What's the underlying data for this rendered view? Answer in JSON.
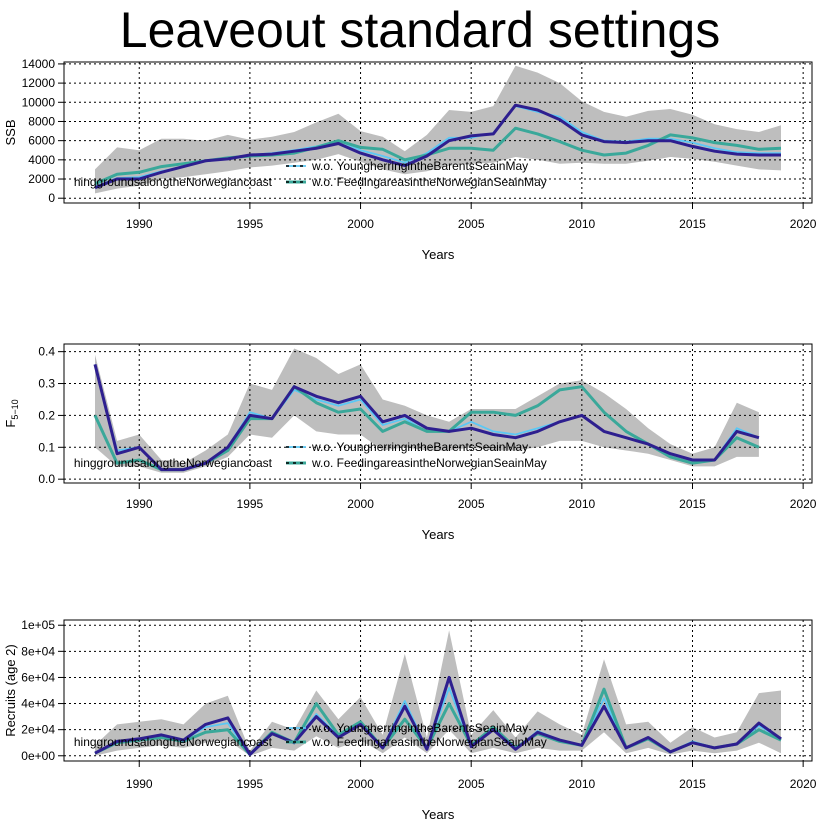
{
  "title": "Leaveout standard settings",
  "colors": {
    "band": "#bebebe",
    "baseline": "#2e1f8f",
    "young_herring": "#5bc8f5",
    "feeding_areas": "#3aa89a",
    "grid": "#000000"
  },
  "chart_data": [
    {
      "type": "line",
      "ylabel": "SSB",
      "xlabel": "Years",
      "xlim": [
        1986.6,
        2020.4
      ],
      "ylim": [
        -500,
        14200
      ],
      "xticks": [
        1990,
        1995,
        2000,
        2005,
        2010,
        2015,
        2020
      ],
      "yticks": [
        0,
        2000,
        4000,
        6000,
        8000,
        10000,
        12000,
        14000
      ],
      "ytick_labels": [
        "0",
        "2000",
        "4000",
        "6000",
        "8000",
        "10000",
        "12000",
        "14000"
      ],
      "grid": true,
      "legend_entries": [
        "w.o. YoungherringintheBarentsSeainMay",
        "w.o. FeedingareasintheNorwegianSeainMay"
      ],
      "legend_cut_label": "hinggroundsalongtheNorwegiancoast",
      "x": [
        1988,
        1989,
        1990,
        1991,
        1992,
        1993,
        1994,
        1995,
        1996,
        1997,
        1998,
        1999,
        2000,
        2001,
        2002,
        2003,
        2004,
        2005,
        2006,
        2007,
        2008,
        2009,
        2010,
        2011,
        2012,
        2013,
        2014,
        2015,
        2016,
        2017,
        2018,
        2019
      ],
      "band_upper": [
        3000,
        5300,
        5000,
        6200,
        6200,
        6000,
        6600,
        6100,
        6400,
        6900,
        7900,
        8800,
        7000,
        6400,
        4900,
        6600,
        9200,
        9000,
        9600,
        13800,
        13100,
        12000,
        10100,
        9000,
        8500,
        9100,
        9300,
        8700,
        7700,
        7200,
        6900,
        7600
      ],
      "band_lower": [
        500,
        1000,
        1300,
        2000,
        2200,
        2500,
        2800,
        3200,
        3400,
        3700,
        4000,
        4600,
        3800,
        3000,
        2500,
        2800,
        3400,
        3600,
        3700,
        4300,
        4000,
        3600,
        3700,
        3600,
        3600,
        3900,
        4300,
        4100,
        3800,
        3400,
        3000,
        2900
      ],
      "series": [
        {
          "key": "baseline",
          "values": [
            1100,
            2000,
            2000,
            2700,
            3300,
            3900,
            4100,
            4500,
            4600,
            4900,
            5200,
            5700,
            4700,
            4000,
            3400,
            4400,
            6000,
            6500,
            6700,
            9700,
            9200,
            8200,
            6600,
            5900,
            5800,
            6000,
            6000,
            5400,
            4900,
            4600,
            4500,
            4500
          ]
        },
        {
          "key": "young_herring",
          "values": [
            1200,
            2100,
            2200,
            2800,
            3300,
            3900,
            4200,
            4500,
            4700,
            5000,
            5400,
            6000,
            5000,
            4400,
            3700,
            4700,
            6300,
            6300,
            6800,
            9600,
            9000,
            8500,
            6900,
            6000,
            5900,
            6200,
            6200,
            5800,
            5200,
            4800,
            4700,
            4700
          ]
        },
        {
          "key": "feeding_areas",
          "values": [
            1500,
            2500,
            2700,
            3300,
            3600,
            3900,
            4200,
            4400,
            4500,
            4700,
            5300,
            6000,
            5300,
            5100,
            4000,
            4500,
            5200,
            5200,
            5000,
            7300,
            6700,
            5900,
            5000,
            4500,
            4700,
            5500,
            6600,
            6300,
            5800,
            5500,
            5100,
            5200
          ]
        }
      ]
    },
    {
      "type": "line",
      "ylabel": "F",
      "ylabel_sub": "5−10",
      "xlabel": "Years",
      "xlim": [
        1986.6,
        2020.4
      ],
      "ylim": [
        -0.012,
        0.424
      ],
      "xticks": [
        1990,
        1995,
        2000,
        2005,
        2010,
        2015,
        2020
      ],
      "yticks": [
        0,
        0.1,
        0.2,
        0.3,
        0.4
      ],
      "ytick_labels": [
        "0.0",
        "0.1",
        "0.2",
        "0.3",
        "0.4"
      ],
      "grid": true,
      "legend_entries": [
        "w.o. YoungherringintheBarentsSeainMay",
        "w.o. FeedingareasintheNorwegianSeainMay"
      ],
      "legend_cut_label": "hinggroundsalongtheNorwegiancoast",
      "x": [
        1988,
        1989,
        1990,
        1991,
        1992,
        1993,
        1994,
        1995,
        1996,
        1997,
        1998,
        1999,
        2000,
        2001,
        2002,
        2003,
        2004,
        2005,
        2006,
        2007,
        2008,
        2009,
        2010,
        2011,
        2012,
        2013,
        2014,
        2015,
        2016,
        2017,
        2018
      ],
      "band_upper": [
        0.39,
        0.12,
        0.14,
        0.06,
        0.05,
        0.09,
        0.14,
        0.3,
        0.28,
        0.41,
        0.38,
        0.33,
        0.36,
        0.25,
        0.23,
        0.2,
        0.18,
        0.22,
        0.22,
        0.22,
        0.26,
        0.3,
        0.31,
        0.27,
        0.22,
        0.16,
        0.11,
        0.08,
        0.1,
        0.24,
        0.21
      ],
      "band_lower": [
        0.1,
        0.04,
        0.04,
        0.02,
        0.02,
        0.04,
        0.07,
        0.14,
        0.13,
        0.2,
        0.15,
        0.14,
        0.14,
        0.09,
        0.1,
        0.09,
        0.09,
        0.1,
        0.09,
        0.09,
        0.1,
        0.12,
        0.12,
        0.1,
        0.09,
        0.08,
        0.06,
        0.04,
        0.04,
        0.07,
        0.07
      ],
      "series": [
        {
          "key": "baseline",
          "values": [
            0.36,
            0.08,
            0.1,
            0.03,
            0.03,
            0.05,
            0.1,
            0.2,
            0.19,
            0.29,
            0.26,
            0.24,
            0.26,
            0.18,
            0.2,
            0.16,
            0.15,
            0.16,
            0.14,
            0.13,
            0.15,
            0.18,
            0.2,
            0.15,
            0.13,
            0.11,
            0.08,
            0.06,
            0.06,
            0.15,
            0.13
          ]
        },
        {
          "key": "young_herring",
          "values": [
            0.36,
            0.09,
            0.1,
            0.03,
            0.03,
            0.05,
            0.1,
            0.21,
            0.19,
            0.28,
            0.25,
            0.23,
            0.25,
            0.17,
            0.19,
            0.15,
            0.15,
            0.18,
            0.15,
            0.14,
            0.16,
            0.18,
            0.2,
            0.15,
            0.13,
            0.11,
            0.08,
            0.06,
            0.06,
            0.16,
            0.13
          ]
        },
        {
          "key": "feeding_areas",
          "values": [
            0.2,
            0.05,
            0.06,
            0.03,
            0.03,
            0.05,
            0.09,
            0.19,
            0.19,
            0.29,
            0.24,
            0.21,
            0.22,
            0.15,
            0.18,
            0.15,
            0.15,
            0.21,
            0.21,
            0.2,
            0.23,
            0.28,
            0.29,
            0.21,
            0.15,
            0.11,
            0.07,
            0.05,
            0.06,
            0.13,
            0.1
          ]
        }
      ]
    },
    {
      "type": "line",
      "ylabel": "Recruits (age 2)",
      "xlabel": "Years",
      "xlim": [
        1986.6,
        2020.4
      ],
      "ylim": [
        -4000,
        104000
      ],
      "xticks": [
        1990,
        1995,
        2000,
        2005,
        2010,
        2015,
        2020
      ],
      "yticks": [
        0,
        20000,
        40000,
        60000,
        80000,
        100000
      ],
      "ytick_labels": [
        "0e+00",
        "2e+04",
        "4e+04",
        "6e+04",
        "8e+04",
        "1e+05"
      ],
      "grid": true,
      "legend_entries": [
        "w.o. YoungherringintheBarentsSeainMay",
        "w.o. FeedingareasintheNorwegianSeainMay"
      ],
      "legend_cut_label": "hinggroundsalongtheNorwegiancoast",
      "x": [
        1988,
        1989,
        1990,
        1991,
        1992,
        1993,
        1994,
        1995,
        1996,
        1997,
        1998,
        1999,
        2000,
        2001,
        2002,
        2003,
        2004,
        2005,
        2006,
        2007,
        2008,
        2009,
        2010,
        2011,
        2012,
        2013,
        2014,
        2015,
        2016,
        2017,
        2018,
        2019
      ],
      "band_upper": [
        8000,
        24000,
        26000,
        28000,
        24000,
        40000,
        46000,
        4000,
        26000,
        20000,
        50000,
        28000,
        45000,
        16000,
        78000,
        14000,
        96000,
        16000,
        35000,
        14000,
        34000,
        24000,
        16000,
        74000,
        24000,
        26000,
        10000,
        22000,
        14000,
        18000,
        48000,
        50000
      ],
      "band_lower": [
        0,
        4000,
        6000,
        8000,
        6000,
        10000,
        12000,
        0,
        6000,
        4000,
        15000,
        6000,
        12000,
        2000,
        14000,
        2000,
        20000,
        2000,
        6000,
        2000,
        6000,
        4000,
        4000,
        18000,
        2000,
        6000,
        1000,
        4000,
        2000,
        4000,
        10000,
        2000
      ],
      "series": [
        {
          "key": "baseline",
          "values": [
            2000,
            11000,
            13000,
            16000,
            12000,
            24000,
            29000,
            1000,
            17000,
            10000,
            30000,
            14000,
            24000,
            6000,
            38000,
            5000,
            60000,
            7000,
            20000,
            5000,
            18000,
            12000,
            8000,
            38000,
            6000,
            14000,
            3000,
            10000,
            6000,
            9000,
            25000,
            13000
          ]
        },
        {
          "key": "young_herring",
          "values": [
            2000,
            11000,
            13000,
            16000,
            12000,
            22000,
            25000,
            1000,
            17000,
            10000,
            32000,
            15000,
            25000,
            6000,
            42000,
            5000,
            52000,
            7000,
            21000,
            5000,
            19000,
            12000,
            8000,
            44000,
            6000,
            14000,
            3000,
            11000,
            6000,
            9000,
            23000,
            13000
          ]
        },
        {
          "key": "feeding_areas",
          "values": [
            2000,
            10000,
            12000,
            14000,
            11000,
            18000,
            20000,
            1000,
            18000,
            10000,
            40000,
            16000,
            26000,
            6000,
            28000,
            6000,
            40000,
            8000,
            22000,
            6000,
            17000,
            11000,
            8000,
            51000,
            6000,
            13000,
            3000,
            10000,
            6000,
            9000,
            20000,
            12000
          ]
        }
      ]
    }
  ]
}
